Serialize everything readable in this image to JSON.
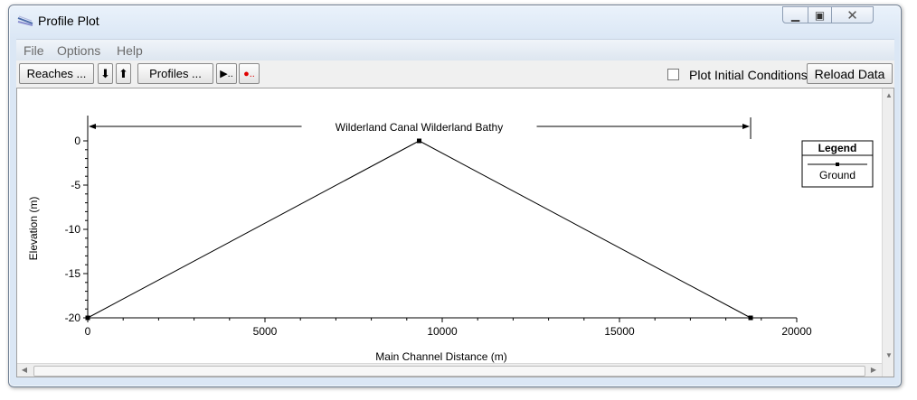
{
  "window": {
    "title": "Profile Plot",
    "minimize_glyph": "▁",
    "maximize_glyph": "▣",
    "close_glyph": "✕"
  },
  "menu": [
    "File",
    "Options",
    "Help"
  ],
  "toolbar": {
    "reaches_label": "Reaches ...",
    "down_arrow": "⬇",
    "up_arrow": "⬆",
    "profiles_label": "Profiles ...",
    "play_glyph": "▶..",
    "record_glyph": "●..",
    "plot_initial_conditions_label": "Plot Initial Conditions",
    "plot_initial_conditions_checked": false,
    "reload_label": "Reload Data"
  },
  "chart_data": {
    "type": "line",
    "title": "Wilderland Canal Wilderland Bathy",
    "xlabel": "Main Channel Distance (m)",
    "ylabel": "Elevation (m)",
    "xlim": [
      0,
      20000
    ],
    "ylim": [
      -20,
      0
    ],
    "x_ticks": [
      0,
      5000,
      10000,
      15000,
      20000
    ],
    "y_ticks": [
      0,
      -5,
      -10,
      -15,
      -20
    ],
    "reach_extent": [
      0,
      18700
    ],
    "series": [
      {
        "name": "Ground",
        "x": [
          0,
          9350,
          18700
        ],
        "y": [
          -20,
          0,
          -20
        ]
      }
    ],
    "legend": {
      "title": "Legend",
      "position": "right"
    },
    "colors": {
      "line": "#000000"
    }
  }
}
